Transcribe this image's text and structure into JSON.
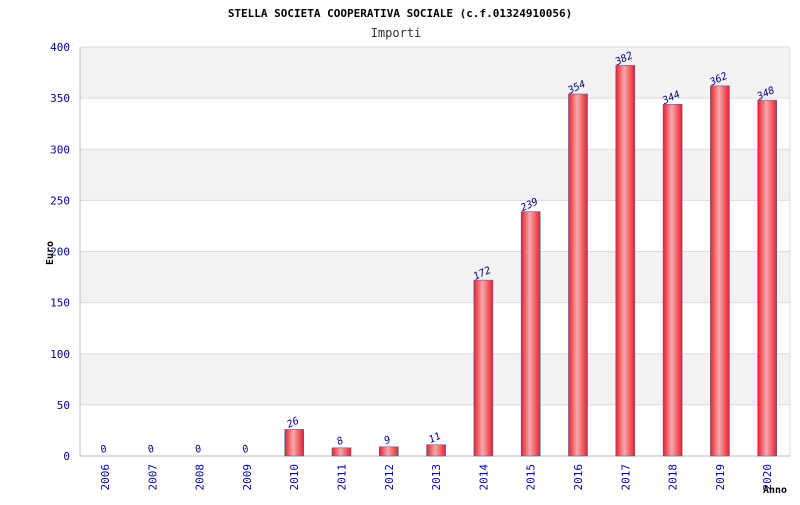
{
  "chart_data": {
    "type": "bar",
    "title": "STELLA SOCIETA COOPERATIVA SOCIALE (c.f.01324910056)",
    "subtitle": "Importi",
    "ylabel": "Euro",
    "xlabel": "Anno",
    "ylim": [
      0,
      400
    ],
    "yticks": [
      0,
      50,
      100,
      150,
      200,
      250,
      300,
      350,
      400
    ],
    "categories": [
      "2006",
      "2007",
      "2008",
      "2009",
      "2010",
      "2011",
      "2012",
      "2013",
      "2014",
      "2015",
      "2016",
      "2017",
      "2018",
      "2019",
      "2020"
    ],
    "values": [
      0,
      0,
      0,
      0,
      26,
      8,
      9,
      11,
      172,
      239,
      354,
      382,
      344,
      362,
      348
    ],
    "grid": true,
    "bar_color": "#e8202a",
    "bar_highlight": "#f7a9ad",
    "bar_border": "#5060b0",
    "band_color": "#f2f2f2",
    "grid_color": "#dcdcdc",
    "tick_color": "#0000a0"
  }
}
